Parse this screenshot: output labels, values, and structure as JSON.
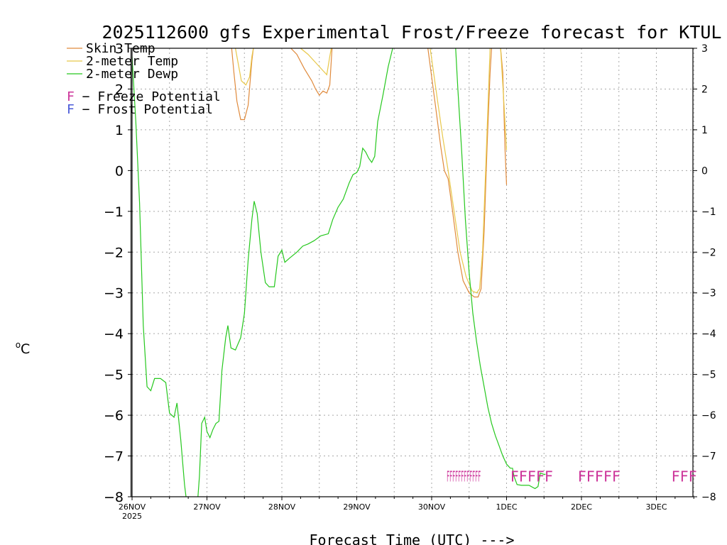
{
  "chart_data": {
    "type": "line",
    "title": "2025112600 gfs Experimental Frost/Freeze forecast for KTUL",
    "ylabel": "°C",
    "ylabel_tex": "oC",
    "xlabel": "Forecast Time (UTC) --->",
    "ylim": [
      -8,
      3
    ],
    "xlim": [
      0,
      7.5
    ],
    "yticks": [
      3,
      2,
      1,
      0,
      -1,
      -2,
      -3,
      -4,
      -5,
      -6,
      -7,
      -8
    ],
    "ytick_labels": [
      "3",
      "2",
      "1",
      "0",
      "−1",
      "−2",
      "−3",
      "−4",
      "−5",
      "−6",
      "−7",
      "−8"
    ],
    "xticks": [
      {
        "x": 0,
        "label": "26NOV",
        "sublabel": "2025"
      },
      {
        "x": 1,
        "label": "27NOV"
      },
      {
        "x": 2,
        "label": "28NOV"
      },
      {
        "x": 3,
        "label": "29NOV"
      },
      {
        "x": 4,
        "label": "30NOV"
      },
      {
        "x": 5,
        "label": "1DEC"
      },
      {
        "x": 6,
        "label": "2DEC"
      },
      {
        "x": 7,
        "label": "3DEC"
      }
    ],
    "series": [
      {
        "name": "Skin Temp",
        "color": "#e08a3c",
        "segments": [
          [
            [
              1.33,
              3
            ],
            [
              1.36,
              2.4
            ],
            [
              1.4,
              1.7
            ],
            [
              1.45,
              1.25
            ],
            [
              1.5,
              1.25
            ],
            [
              1.55,
              1.6
            ],
            [
              1.6,
              2.7
            ],
            [
              1.62,
              3
            ]
          ],
          [
            [
              2.12,
              3
            ],
            [
              2.2,
              2.85
            ],
            [
              2.3,
              2.5
            ],
            [
              2.4,
              2.2
            ],
            [
              2.45,
              2.0
            ],
            [
              2.5,
              1.85
            ],
            [
              2.55,
              1.95
            ],
            [
              2.6,
              1.9
            ],
            [
              2.64,
              2.1
            ],
            [
              2.67,
              3
            ]
          ],
          [
            [
              3.95,
              3
            ],
            [
              4.05,
              1.6
            ],
            [
              4.12,
              0.6
            ],
            [
              4.17,
              0
            ],
            [
              4.22,
              -0.2
            ],
            [
              4.28,
              -1.0
            ],
            [
              4.35,
              -2.0
            ],
            [
              4.42,
              -2.7
            ],
            [
              4.5,
              -3.0
            ],
            [
              4.57,
              -3.1
            ],
            [
              4.62,
              -3.1
            ],
            [
              4.66,
              -2.9
            ],
            [
              4.7,
              -1.5
            ],
            [
              4.74,
              0.6
            ],
            [
              4.78,
              2.4
            ],
            [
              4.8,
              3
            ]
          ],
          [
            [
              4.92,
              3
            ],
            [
              4.95,
              2.4
            ],
            [
              4.98,
              0.5
            ],
            [
              5.0,
              -0.35
            ]
          ]
        ]
      },
      {
        "name": "2-meter Temp",
        "color": "#e8c84a",
        "segments": [
          [
            [
              1.38,
              3
            ],
            [
              1.42,
              2.6
            ],
            [
              1.46,
              2.2
            ],
            [
              1.52,
              2.1
            ],
            [
              1.57,
              2.3
            ],
            [
              1.6,
              2.8
            ],
            [
              1.62,
              3
            ]
          ],
          [
            [
              2.25,
              3
            ],
            [
              2.35,
              2.85
            ],
            [
              2.45,
              2.65
            ],
            [
              2.55,
              2.45
            ],
            [
              2.6,
              2.35
            ],
            [
              2.64,
              2.8
            ],
            [
              2.66,
              3
            ]
          ],
          [
            [
              3.98,
              3
            ],
            [
              4.08,
              1.7
            ],
            [
              4.15,
              0.8
            ],
            [
              4.22,
              0
            ],
            [
              4.3,
              -1.0
            ],
            [
              4.38,
              -2.0
            ],
            [
              4.46,
              -2.6
            ],
            [
              4.54,
              -2.95
            ],
            [
              4.6,
              -3.0
            ],
            [
              4.64,
              -2.9
            ],
            [
              4.68,
              -2.0
            ],
            [
              4.72,
              0
            ],
            [
              4.76,
              2.0
            ],
            [
              4.78,
              3
            ]
          ],
          [
            [
              4.92,
              3
            ],
            [
              4.97,
              1.5
            ],
            [
              5.0,
              0.5
            ]
          ]
        ]
      },
      {
        "name": "2-meter Dewp",
        "color": "#26c81e",
        "segments": [
          [
            [
              0.0,
              2.8
            ],
            [
              0.05,
              1.2
            ],
            [
              0.1,
              -0.8
            ],
            [
              0.15,
              -3.8
            ],
            [
              0.2,
              -5.3
            ],
            [
              0.25,
              -5.4
            ],
            [
              0.3,
              -5.1
            ],
            [
              0.38,
              -5.1
            ],
            [
              0.45,
              -5.2
            ],
            [
              0.5,
              -5.95
            ],
            [
              0.56,
              -6.05
            ],
            [
              0.6,
              -5.7
            ],
            [
              0.65,
              -6.6
            ],
            [
              0.7,
              -7.7
            ],
            [
              0.72,
              -8.0
            ]
          ],
          [
            [
              0.88,
              -8.0
            ],
            [
              0.9,
              -7.5
            ],
            [
              0.93,
              -6.2
            ],
            [
              0.97,
              -6.05
            ],
            [
              1.0,
              -6.4
            ],
            [
              1.04,
              -6.55
            ],
            [
              1.08,
              -6.35
            ],
            [
              1.12,
              -6.2
            ],
            [
              1.16,
              -6.15
            ],
            [
              1.2,
              -4.9
            ],
            [
              1.25,
              -4.1
            ],
            [
              1.28,
              -3.8
            ],
            [
              1.32,
              -4.35
            ],
            [
              1.38,
              -4.4
            ],
            [
              1.45,
              -4.1
            ],
            [
              1.5,
              -3.5
            ],
            [
              1.55,
              -2.2
            ],
            [
              1.6,
              -1.2
            ],
            [
              1.63,
              -0.75
            ],
            [
              1.67,
              -1.05
            ],
            [
              1.72,
              -2.0
            ],
            [
              1.78,
              -2.75
            ],
            [
              1.83,
              -2.85
            ],
            [
              1.9,
              -2.85
            ],
            [
              1.95,
              -2.1
            ],
            [
              2.0,
              -1.95
            ],
            [
              2.04,
              -2.25
            ],
            [
              2.1,
              -2.15
            ],
            [
              2.2,
              -2.0
            ],
            [
              2.28,
              -1.85
            ],
            [
              2.35,
              -1.8
            ],
            [
              2.43,
              -1.72
            ],
            [
              2.52,
              -1.6
            ],
            [
              2.62,
              -1.55
            ],
            [
              2.68,
              -1.2
            ],
            [
              2.75,
              -0.9
            ],
            [
              2.82,
              -0.7
            ],
            [
              2.9,
              -0.3
            ],
            [
              2.95,
              -0.1
            ],
            [
              3.0,
              -0.05
            ],
            [
              3.04,
              0.1
            ],
            [
              3.08,
              0.55
            ],
            [
              3.12,
              0.45
            ],
            [
              3.16,
              0.3
            ],
            [
              3.2,
              0.2
            ],
            [
              3.24,
              0.35
            ],
            [
              3.28,
              1.2
            ],
            [
              3.35,
              1.85
            ],
            [
              3.42,
              2.55
            ],
            [
              3.48,
              3.0
            ]
          ],
          [
            [
              4.32,
              3.0
            ],
            [
              4.35,
              2.0
            ],
            [
              4.4,
              0.5
            ],
            [
              4.45,
              -1.2
            ],
            [
              4.5,
              -2.5
            ],
            [
              4.55,
              -3.5
            ],
            [
              4.6,
              -4.2
            ],
            [
              4.65,
              -4.8
            ],
            [
              4.7,
              -5.3
            ],
            [
              4.75,
              -5.8
            ],
            [
              4.8,
              -6.2
            ],
            [
              4.85,
              -6.5
            ],
            [
              4.9,
              -6.75
            ],
            [
              4.95,
              -7.0
            ],
            [
              5.0,
              -7.2
            ],
            [
              5.05,
              -7.3
            ],
            [
              5.08,
              -7.3
            ],
            [
              5.1,
              -7.5
            ],
            [
              5.14,
              -7.7
            ],
            [
              5.2,
              -7.72
            ],
            [
              5.3,
              -7.72
            ],
            [
              5.38,
              -7.8
            ],
            [
              5.42,
              -7.75
            ],
            [
              5.45,
              -7.42
            ],
            [
              5.5,
              -7.45
            ],
            [
              5.52,
              -7.45
            ]
          ]
        ]
      }
    ],
    "freeze_potential": {
      "symbol": "F",
      "color": "#cc3399",
      "y": -7.5,
      "groups": [
        {
          "label": "FFFFFFFFFFFF",
          "x": 4.2
        },
        {
          "label": "FFFFF",
          "x": 5.05
        },
        {
          "label": "FFFFF",
          "x": 5.95
        },
        {
          "label": "FFF",
          "x": 7.2
        }
      ]
    },
    "legend": [
      {
        "label": "Skin Temp",
        "color": "#e08a3c",
        "kind": "line"
      },
      {
        "label": "2-meter Temp",
        "color": "#e8c84a",
        "kind": "line"
      },
      {
        "label": "2-meter Dewp",
        "color": "#26c81e",
        "kind": "line"
      },
      {
        "label": "F - Freeze Potential",
        "color": "#cc3399",
        "kind": "letter",
        "letter": "F",
        "text": " − Freeze Potential"
      },
      {
        "label": "F - Frost Potential",
        "color": "#4a5ad8",
        "kind": "letter",
        "letter": "F",
        "text": " − Frost Potential"
      }
    ]
  }
}
